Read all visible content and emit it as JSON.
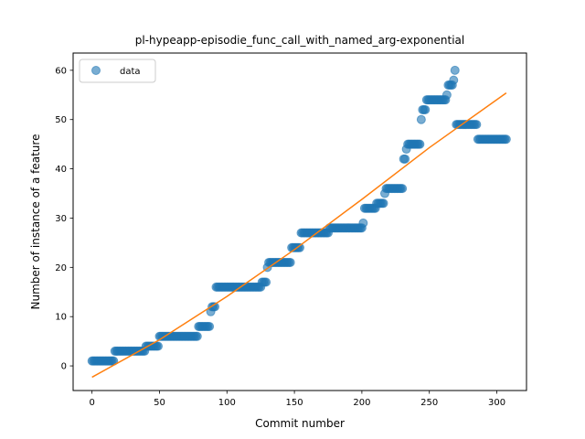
{
  "chart_data": {
    "type": "scatter",
    "title": "pl-hypeapp-episodie_func_call_with_named_arg-exponential",
    "xlabel": "Commit number",
    "ylabel": "Number of instance of a feature",
    "xlim": [
      -14,
      322
    ],
    "ylim": [
      -5,
      63.5
    ],
    "xticks": [
      0,
      50,
      100,
      150,
      200,
      250,
      300
    ],
    "yticks": [
      0,
      10,
      20,
      30,
      40,
      50,
      60
    ],
    "grid": false,
    "legend": {
      "placement": "top-left",
      "entries": [
        "data"
      ]
    },
    "series": [
      {
        "name": "data",
        "kind": "scatter",
        "color": "#1f77b4",
        "opacity": 0.6,
        "segments": [
          {
            "x_start": 0,
            "x_end": 16,
            "y": 1
          },
          {
            "x_start": 17,
            "x_end": 39,
            "y": 3
          },
          {
            "x_start": 40,
            "x_end": 49,
            "y": 4
          },
          {
            "x_start": 50,
            "x_end": 78,
            "y": 6
          },
          {
            "x_start": 79,
            "x_end": 87,
            "y": 8
          },
          {
            "x_start": 88,
            "x_end": 88,
            "y": 11
          },
          {
            "x_start": 89,
            "x_end": 91,
            "y": 12
          },
          {
            "x_start": 92,
            "x_end": 125,
            "y": 16
          },
          {
            "x_start": 126,
            "x_end": 129,
            "y": 17
          },
          {
            "x_start": 130,
            "x_end": 130,
            "y": 20
          },
          {
            "x_start": 131,
            "x_end": 147,
            "y": 21
          },
          {
            "x_start": 148,
            "x_end": 154,
            "y": 24
          },
          {
            "x_start": 155,
            "x_end": 175,
            "y": 27
          },
          {
            "x_start": 176,
            "x_end": 200,
            "y": 28
          },
          {
            "x_start": 201,
            "x_end": 201,
            "y": 29
          },
          {
            "x_start": 202,
            "x_end": 210,
            "y": 32
          },
          {
            "x_start": 211,
            "x_end": 216,
            "y": 33
          },
          {
            "x_start": 217,
            "x_end": 217,
            "y": 35
          },
          {
            "x_start": 218,
            "x_end": 230,
            "y": 36
          },
          {
            "x_start": 231,
            "x_end": 232,
            "y": 42
          },
          {
            "x_start": 233,
            "x_end": 233,
            "y": 44
          },
          {
            "x_start": 234,
            "x_end": 243,
            "y": 45
          },
          {
            "x_start": 244,
            "x_end": 244,
            "y": 50
          },
          {
            "x_start": 245,
            "x_end": 247,
            "y": 52
          },
          {
            "x_start": 248,
            "x_end": 262,
            "y": 54
          },
          {
            "x_start": 263,
            "x_end": 263,
            "y": 55
          },
          {
            "x_start": 264,
            "x_end": 267,
            "y": 57
          },
          {
            "x_start": 268,
            "x_end": 268,
            "y": 58
          },
          {
            "x_start": 269,
            "x_end": 269,
            "y": 60
          },
          {
            "x_start": 270,
            "x_end": 285,
            "y": 49
          },
          {
            "x_start": 286,
            "x_end": 307,
            "y": 46
          }
        ]
      },
      {
        "name": "",
        "kind": "line",
        "color": "#ff7f0e",
        "x": [
          0,
          50,
          100,
          150,
          200,
          250,
          307
        ],
        "y": [
          -2.3,
          5.3,
          14.1,
          23.6,
          33.8,
          44.3,
          55.4
        ]
      }
    ]
  }
}
